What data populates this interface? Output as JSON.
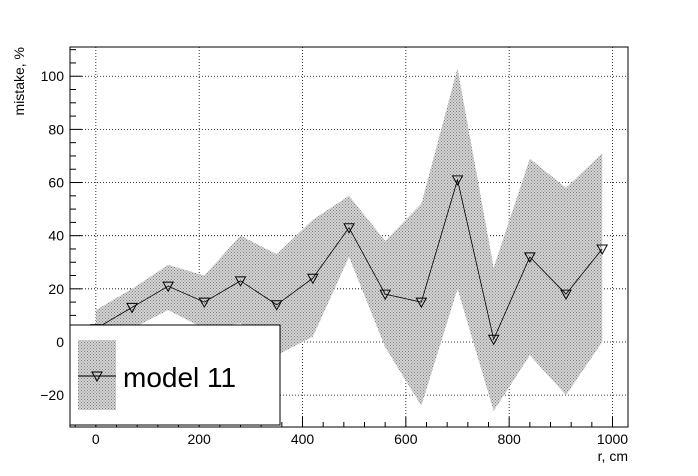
{
  "chart_data": {
    "type": "line",
    "xlabel": "r, cm",
    "ylabel": "mistake, %",
    "xlim": [
      -50,
      1030
    ],
    "ylim": [
      -32,
      111
    ],
    "x_ticks": [
      0,
      200,
      400,
      600,
      800,
      1000
    ],
    "y_ticks": [
      -20,
      0,
      20,
      40,
      60,
      80,
      100
    ],
    "grid": true,
    "legend_position": "bottom-left",
    "series": [
      {
        "name": "model 11",
        "marker": "open-triangle-down",
        "line_color": "#000000",
        "band_color": "#b0b0b0",
        "x": [
          0,
          70,
          140,
          210,
          280,
          350,
          420,
          490,
          560,
          630,
          700,
          770,
          840,
          910,
          980
        ],
        "y": [
          5,
          13,
          21,
          15,
          23,
          14,
          24,
          43,
          18,
          15,
          61,
          1,
          32,
          18,
          35
        ],
        "y_low": [
          -5,
          5,
          12,
          5,
          7,
          -5,
          2,
          32,
          -2,
          -24,
          20,
          -26,
          -5,
          -20,
          0
        ],
        "y_high": [
          12,
          20,
          29,
          25,
          40,
          33,
          46,
          55,
          38,
          52,
          103,
          28,
          69,
          58,
          71
        ]
      }
    ]
  }
}
